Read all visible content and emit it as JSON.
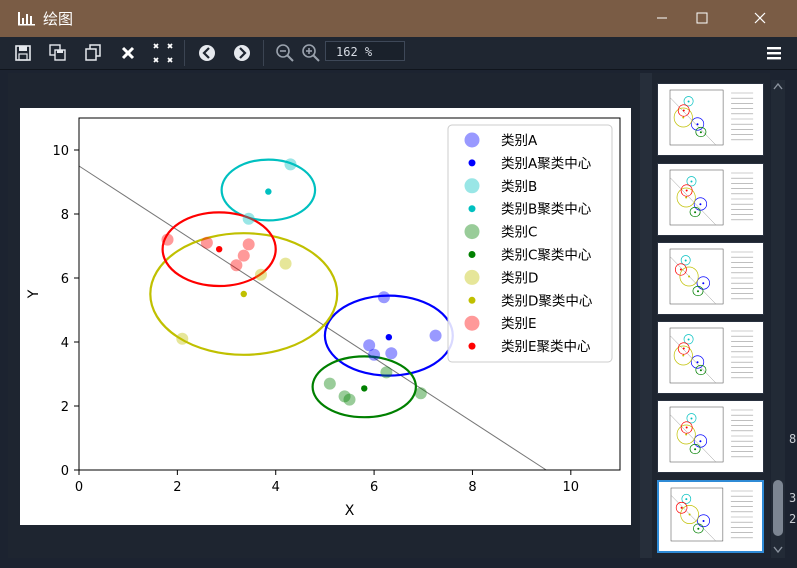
{
  "window": {
    "title": "绘图"
  },
  "toolbar": {
    "zoom_value": "162 %",
    "buttons": [
      "save-icon",
      "save-all-icon",
      "copy-icon",
      "close-icon",
      "close-all-icon",
      "back-icon",
      "forward-icon",
      "zoom-out-icon",
      "zoom-in-icon"
    ]
  },
  "background_text": {
    "a": "8",
    "b": "3",
    "c": "2"
  },
  "chart_data": {
    "type": "scatter",
    "xlabel": "X",
    "ylabel": "Y",
    "xlim": [
      0,
      11
    ],
    "ylim": [
      0,
      11
    ],
    "xticks": [
      0,
      2,
      4,
      6,
      8,
      10
    ],
    "yticks": [
      0,
      2,
      4,
      6,
      8,
      10
    ],
    "grid": false,
    "legend_position": "top-right",
    "line": {
      "x": [
        0,
        9.5
      ],
      "y": [
        9.5,
        0
      ]
    },
    "series": [
      {
        "name": "类别A",
        "color": "#0000ff",
        "points": [
          [
            6.2,
            5.4
          ],
          [
            5.9,
            3.9
          ],
          [
            6.0,
            3.6
          ],
          [
            6.35,
            3.65
          ],
          [
            7.25,
            4.2
          ]
        ],
        "center_name": "类别A聚类中心",
        "center": [
          6.3,
          4.15
        ],
        "ellipse": {
          "cx": 6.3,
          "cy": 4.2,
          "rx": 1.3,
          "ry": 1.25
        }
      },
      {
        "name": "类别B",
        "color": "#00c0c0",
        "points": [
          [
            4.3,
            9.55
          ],
          [
            3.45,
            7.85
          ]
        ],
        "center_name": "类别B聚类中心",
        "center": [
          3.85,
          8.7
        ],
        "ellipse": {
          "cx": 3.85,
          "cy": 8.75,
          "rx": 0.95,
          "ry": 0.95
        }
      },
      {
        "name": "类别C",
        "color": "#008000",
        "points": [
          [
            5.1,
            2.7
          ],
          [
            5.4,
            2.3
          ],
          [
            5.5,
            2.2
          ],
          [
            6.25,
            3.05
          ],
          [
            6.95,
            2.4
          ]
        ],
        "center_name": "类别C聚类中心",
        "center": [
          5.8,
          2.55
        ],
        "ellipse": {
          "cx": 5.8,
          "cy": 2.6,
          "rx": 1.05,
          "ry": 0.95
        }
      },
      {
        "name": "类别D",
        "color": "#c0c000",
        "points": [
          [
            2.1,
            4.1
          ],
          [
            3.7,
            6.1
          ],
          [
            4.2,
            6.45
          ]
        ],
        "center_name": "类别D聚类中心",
        "center": [
          3.35,
          5.5
        ],
        "ellipse": {
          "cx": 3.35,
          "cy": 5.5,
          "rx": 1.9,
          "ry": 1.9
        }
      },
      {
        "name": "类别E",
        "color": "#ff0000",
        "points": [
          [
            1.8,
            7.2
          ],
          [
            2.6,
            7.1
          ],
          [
            3.2,
            6.4
          ],
          [
            3.35,
            6.7
          ],
          [
            3.45,
            7.05
          ]
        ],
        "center_name": "类别E聚类中心",
        "center": [
          2.85,
          6.9
        ],
        "ellipse": {
          "cx": 2.85,
          "cy": 6.9,
          "rx": 1.15,
          "ry": 1.15
        }
      }
    ]
  }
}
